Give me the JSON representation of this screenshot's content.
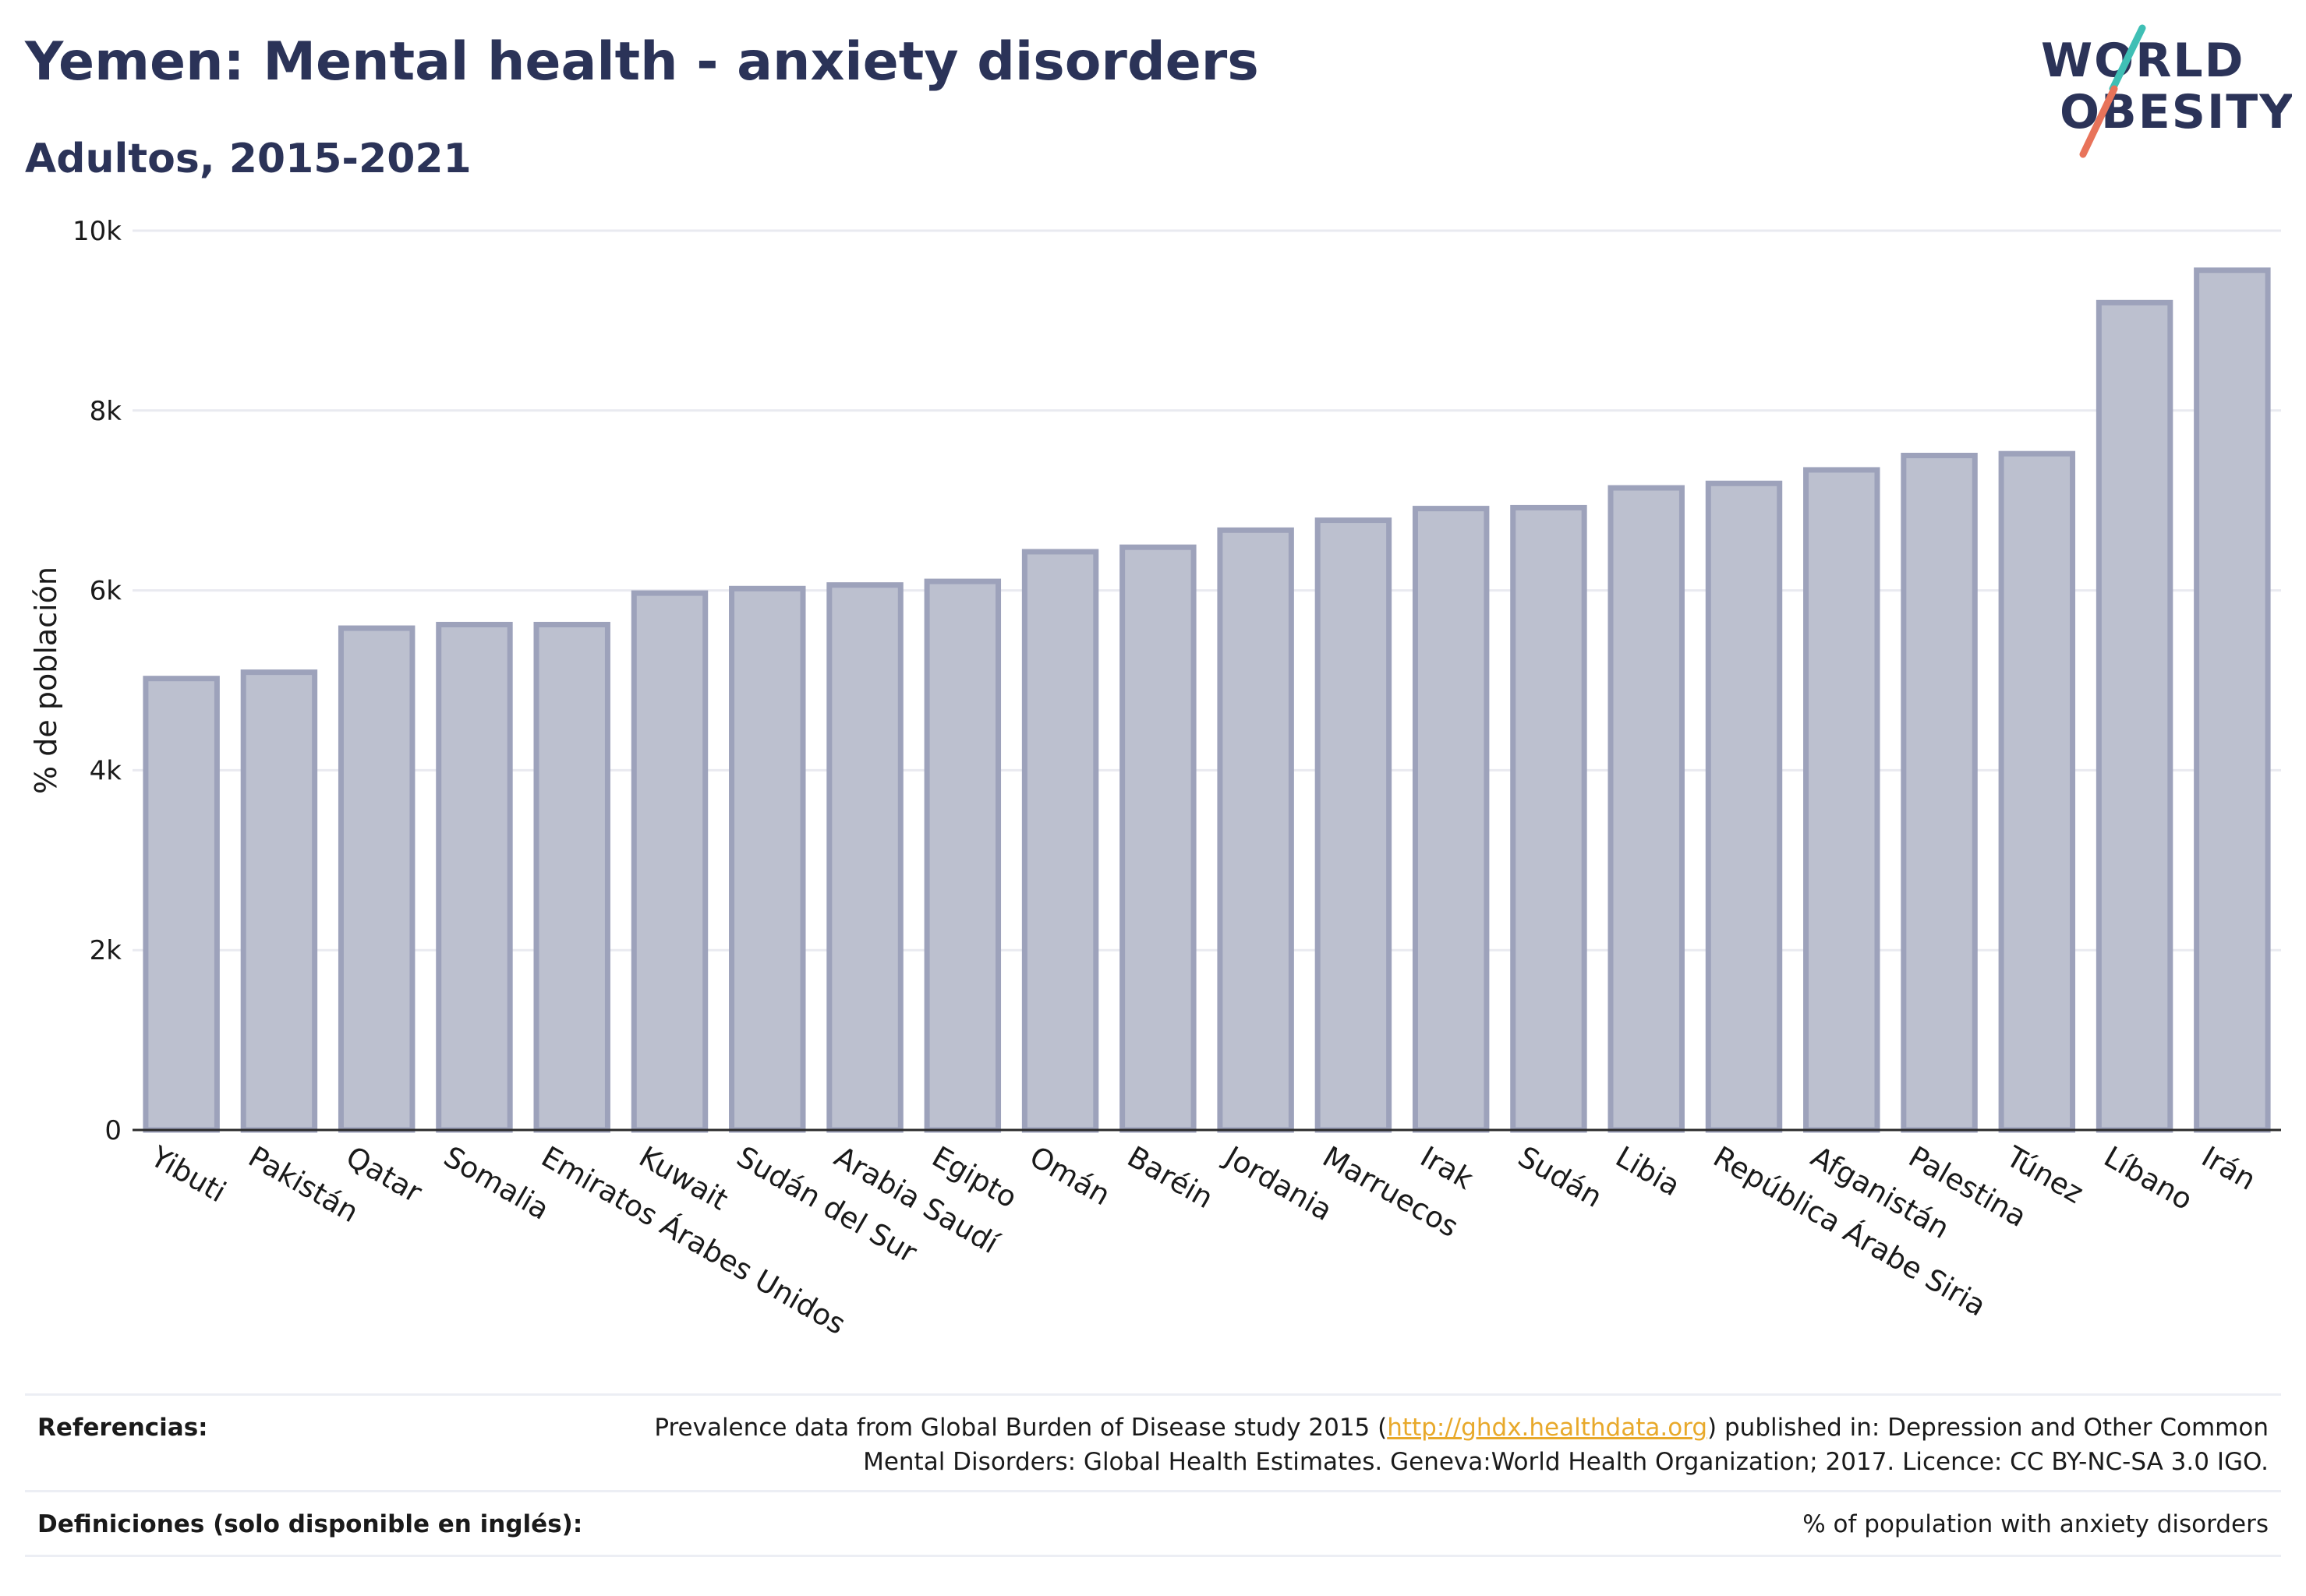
{
  "header": {
    "title": "Yemen: Mental health - anxiety disorders",
    "subtitle": "Adultos, 2015-2021"
  },
  "logo": {
    "line1": "WORLD",
    "line2": "OBESITY",
    "colors": {
      "text": "#2b3358",
      "slash_teal": "#3fbfb5",
      "slash_coral": "#e8735a"
    }
  },
  "chart_data": {
    "type": "bar",
    "ylabel": "% de población",
    "xlabel": "",
    "ylim": [
      0,
      10000
    ],
    "yticks": [
      0,
      2000,
      4000,
      6000,
      8000,
      10000
    ],
    "ytick_labels": [
      "0",
      "2k",
      "4k",
      "6k",
      "8k",
      "10k"
    ],
    "grid": true,
    "categories": [
      "Yibuti",
      "Pakistán",
      "Qatar",
      "Somalia",
      "Emiratos Árabes Unidos",
      "Kuwait",
      "Sudán del Sur",
      "Arabia Saudí",
      "Egipto",
      "Omán",
      "Baréin",
      "Jordania",
      "Marruecos",
      "Irak",
      "Sudán",
      "Libia",
      "República Árabe Siria",
      "Afganistán",
      "Palestina",
      "Túnez",
      "Líbano",
      "Irán"
    ],
    "values": [
      5020,
      5090,
      5580,
      5620,
      5620,
      5970,
      6020,
      6060,
      6100,
      6430,
      6480,
      6670,
      6780,
      6910,
      6920,
      7140,
      7190,
      7340,
      7500,
      7520,
      9200,
      9560
    ],
    "bar_fill": "#bcc0cf",
    "bar_stroke": "#9da2bb"
  },
  "footer": {
    "references_label": "Referencias:",
    "references_pre": "Prevalence data from Global Burden of Disease study 2015 (",
    "references_link": "http://ghdx.healthdata.org",
    "references_post": ") published in: Depression and Other Common",
    "references_line2": "Mental Disorders: Global Health Estimates. Geneva:World Health Organization; 2017. Licence: CC BY-NC-SA 3.0 IGO.",
    "definitions_label": "Definiciones (solo disponible en inglés):",
    "definitions_text": "% of population with anxiety disorders"
  }
}
